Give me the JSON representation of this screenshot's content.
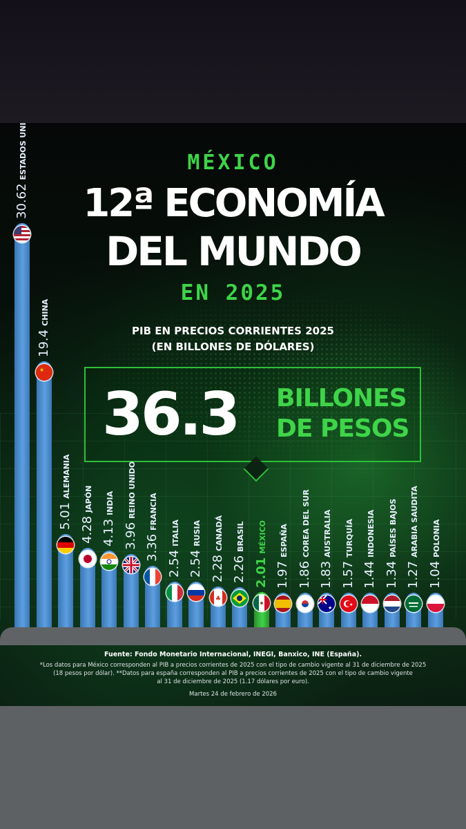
{
  "header": {
    "country": "MÉXICO",
    "headline_line1": "12ª ECONOMÍA",
    "headline_line2": "DEL MUNDO",
    "year_line": "EN 2025",
    "subtitle_line1": "PIB EN PRECIOS CORRIENTES 2025",
    "subtitle_line2": "(EN BILLONES DE DÓLARES)"
  },
  "callout": {
    "value": "36.3",
    "unit_line1": "BILLONES",
    "unit_line2": "DE PESOS"
  },
  "footer": {
    "source": "Fuente: Fondo Monetario Internacional, INEGI, Banxico, INE (España).",
    "note_line1": "*Los datos para México corresponden al PIB a precios corrientes de 2025 con el tipo de cambio vigente al 31 de diciembre de 2025",
    "note_line2": "(18 pesos por dólar). **Datos para españa corresponden al PIB a precios corrientes de 2025 con el tipo de cambio vigente",
    "note_line3": "al 31 de diciembre de 2025 (1.17 dólares por euro).",
    "date": "Martes 24 de febrero de 2026"
  },
  "colors": {
    "accent_green": "#3fd449",
    "bar_blue": "#5d9ee0",
    "bar_mexico": "#3fd449"
  },
  "chart_data": {
    "type": "bar",
    "categories": [
      "ESTADOS UNIDOS",
      "CHINA",
      "ALEMANIA",
      "JAPÓN",
      "INDIA",
      "REINO UNIDO",
      "FRANCIA",
      "ITALIA",
      "RUSIA",
      "CANADÁ",
      "BRASIL",
      "MÉXICO",
      "ESPAÑA",
      "COREA DEL SUR",
      "AUSTRALIA",
      "TURQUÍA",
      "INDONESIA",
      "PAÍSES BAJOS",
      "ARABIA SAUDITA",
      "POLONIA"
    ],
    "values": [
      30.62,
      19.4,
      5.01,
      4.28,
      4.13,
      3.96,
      3.36,
      2.54,
      2.54,
      2.28,
      2.26,
      2.01,
      1.97,
      1.86,
      1.83,
      1.57,
      1.44,
      1.34,
      1.27,
      1.04
    ],
    "value_labels": [
      "30.62",
      "19.4",
      "5.01",
      "4.28",
      "4.13",
      "3.96",
      "3.36",
      "2.54",
      "2.54",
      "2.28",
      "2.26",
      "2.01",
      "1.97",
      "1.86",
      "1.83",
      "1.57",
      "1.44",
      "1.34",
      "1.27",
      "1.04"
    ],
    "flags": [
      "us-flag-icon",
      "cn-flag-icon",
      "de-flag-icon",
      "jp-flag-icon",
      "in-flag-icon",
      "gb-flag-icon",
      "fr-flag-icon",
      "it-flag-icon",
      "ru-flag-icon",
      "ca-flag-icon",
      "br-flag-icon",
      "mx-flag-icon",
      "es-flag-icon",
      "kr-flag-icon",
      "au-flag-icon",
      "tr-flag-icon",
      "id-flag-icon",
      "nl-flag-icon",
      "sa-flag-icon",
      "pl-flag-icon"
    ],
    "highlight": "MÉXICO",
    "title": "PIB EN PRECIOS CORRIENTES 2025",
    "ylabel": "",
    "xlabel": "",
    "legend": "none",
    "grid": false
  }
}
